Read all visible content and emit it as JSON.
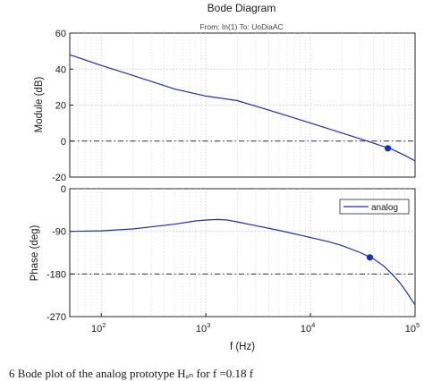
{
  "chart_data": [
    {
      "type": "line",
      "panel": "magnitude",
      "title": "Bode Diagram",
      "subtitle": "From: In(1)  To: UoDiaAC",
      "ylabel": "Module (dB)",
      "xlabel": "",
      "x_scale": "log",
      "xlim": [
        50,
        100000
      ],
      "ylim": [
        -20,
        60
      ],
      "yticks": [
        -20,
        0,
        20,
        40,
        60
      ],
      "grid": true,
      "reference_line": {
        "y": 0,
        "style": "dash-dot",
        "color": "#333333"
      },
      "series": [
        {
          "color": "#1f2fb0",
          "x": [
            50,
            100,
            200,
            500,
            1000,
            2000,
            5000,
            10000,
            20000,
            35000,
            50000,
            60000,
            80000,
            100000
          ],
          "y": [
            48,
            42,
            36.5,
            29,
            25,
            22.5,
            15.5,
            10,
            4.5,
            0,
            -3,
            -4.5,
            -8,
            -11
          ]
        }
      ],
      "marker": {
        "x": 55000,
        "y": -4,
        "color": "#1030d0"
      }
    },
    {
      "type": "line",
      "panel": "phase",
      "ylabel": "Phase (deg)",
      "xlabel": "f (Hz)",
      "x_scale": "log",
      "xlim": [
        50,
        100000
      ],
      "ylim": [
        -270,
        0
      ],
      "yticks": [
        -270,
        -180,
        -90,
        0
      ],
      "xticks": [
        {
          "value": 100,
          "base": "10",
          "exp": "2"
        },
        {
          "value": 1000,
          "base": "10",
          "exp": "3"
        },
        {
          "value": 10000,
          "base": "10",
          "exp": "4"
        },
        {
          "value": 100000,
          "base": "10",
          "exp": "5"
        }
      ],
      "grid": true,
      "legend": {
        "entries": [
          "analog"
        ],
        "placement": "top-right"
      },
      "reference_line": {
        "y": -180,
        "style": "dash-dot",
        "color": "#333333"
      },
      "series": [
        {
          "name": "analog",
          "color": "#1f2fb0",
          "x": [
            50,
            100,
            200,
            500,
            800,
            1000,
            1300,
            1600,
            2000,
            3000,
            5000,
            8000,
            10000,
            15000,
            20000,
            30000,
            40000,
            50000,
            60000,
            70000,
            80000,
            90000,
            100000
          ],
          "y": [
            -90,
            -89,
            -85,
            -75,
            -68,
            -66,
            -65,
            -66,
            -70,
            -78,
            -88,
            -98,
            -103,
            -112,
            -120,
            -135,
            -148,
            -163,
            -180,
            -196,
            -213,
            -230,
            -245
          ]
        }
      ],
      "marker": {
        "x": 37000,
        "y": -145,
        "color": "#1030d0"
      }
    }
  ],
  "caption": "6   Bode plot of the analog prototype Hₐₙ for f =0.18 f"
}
